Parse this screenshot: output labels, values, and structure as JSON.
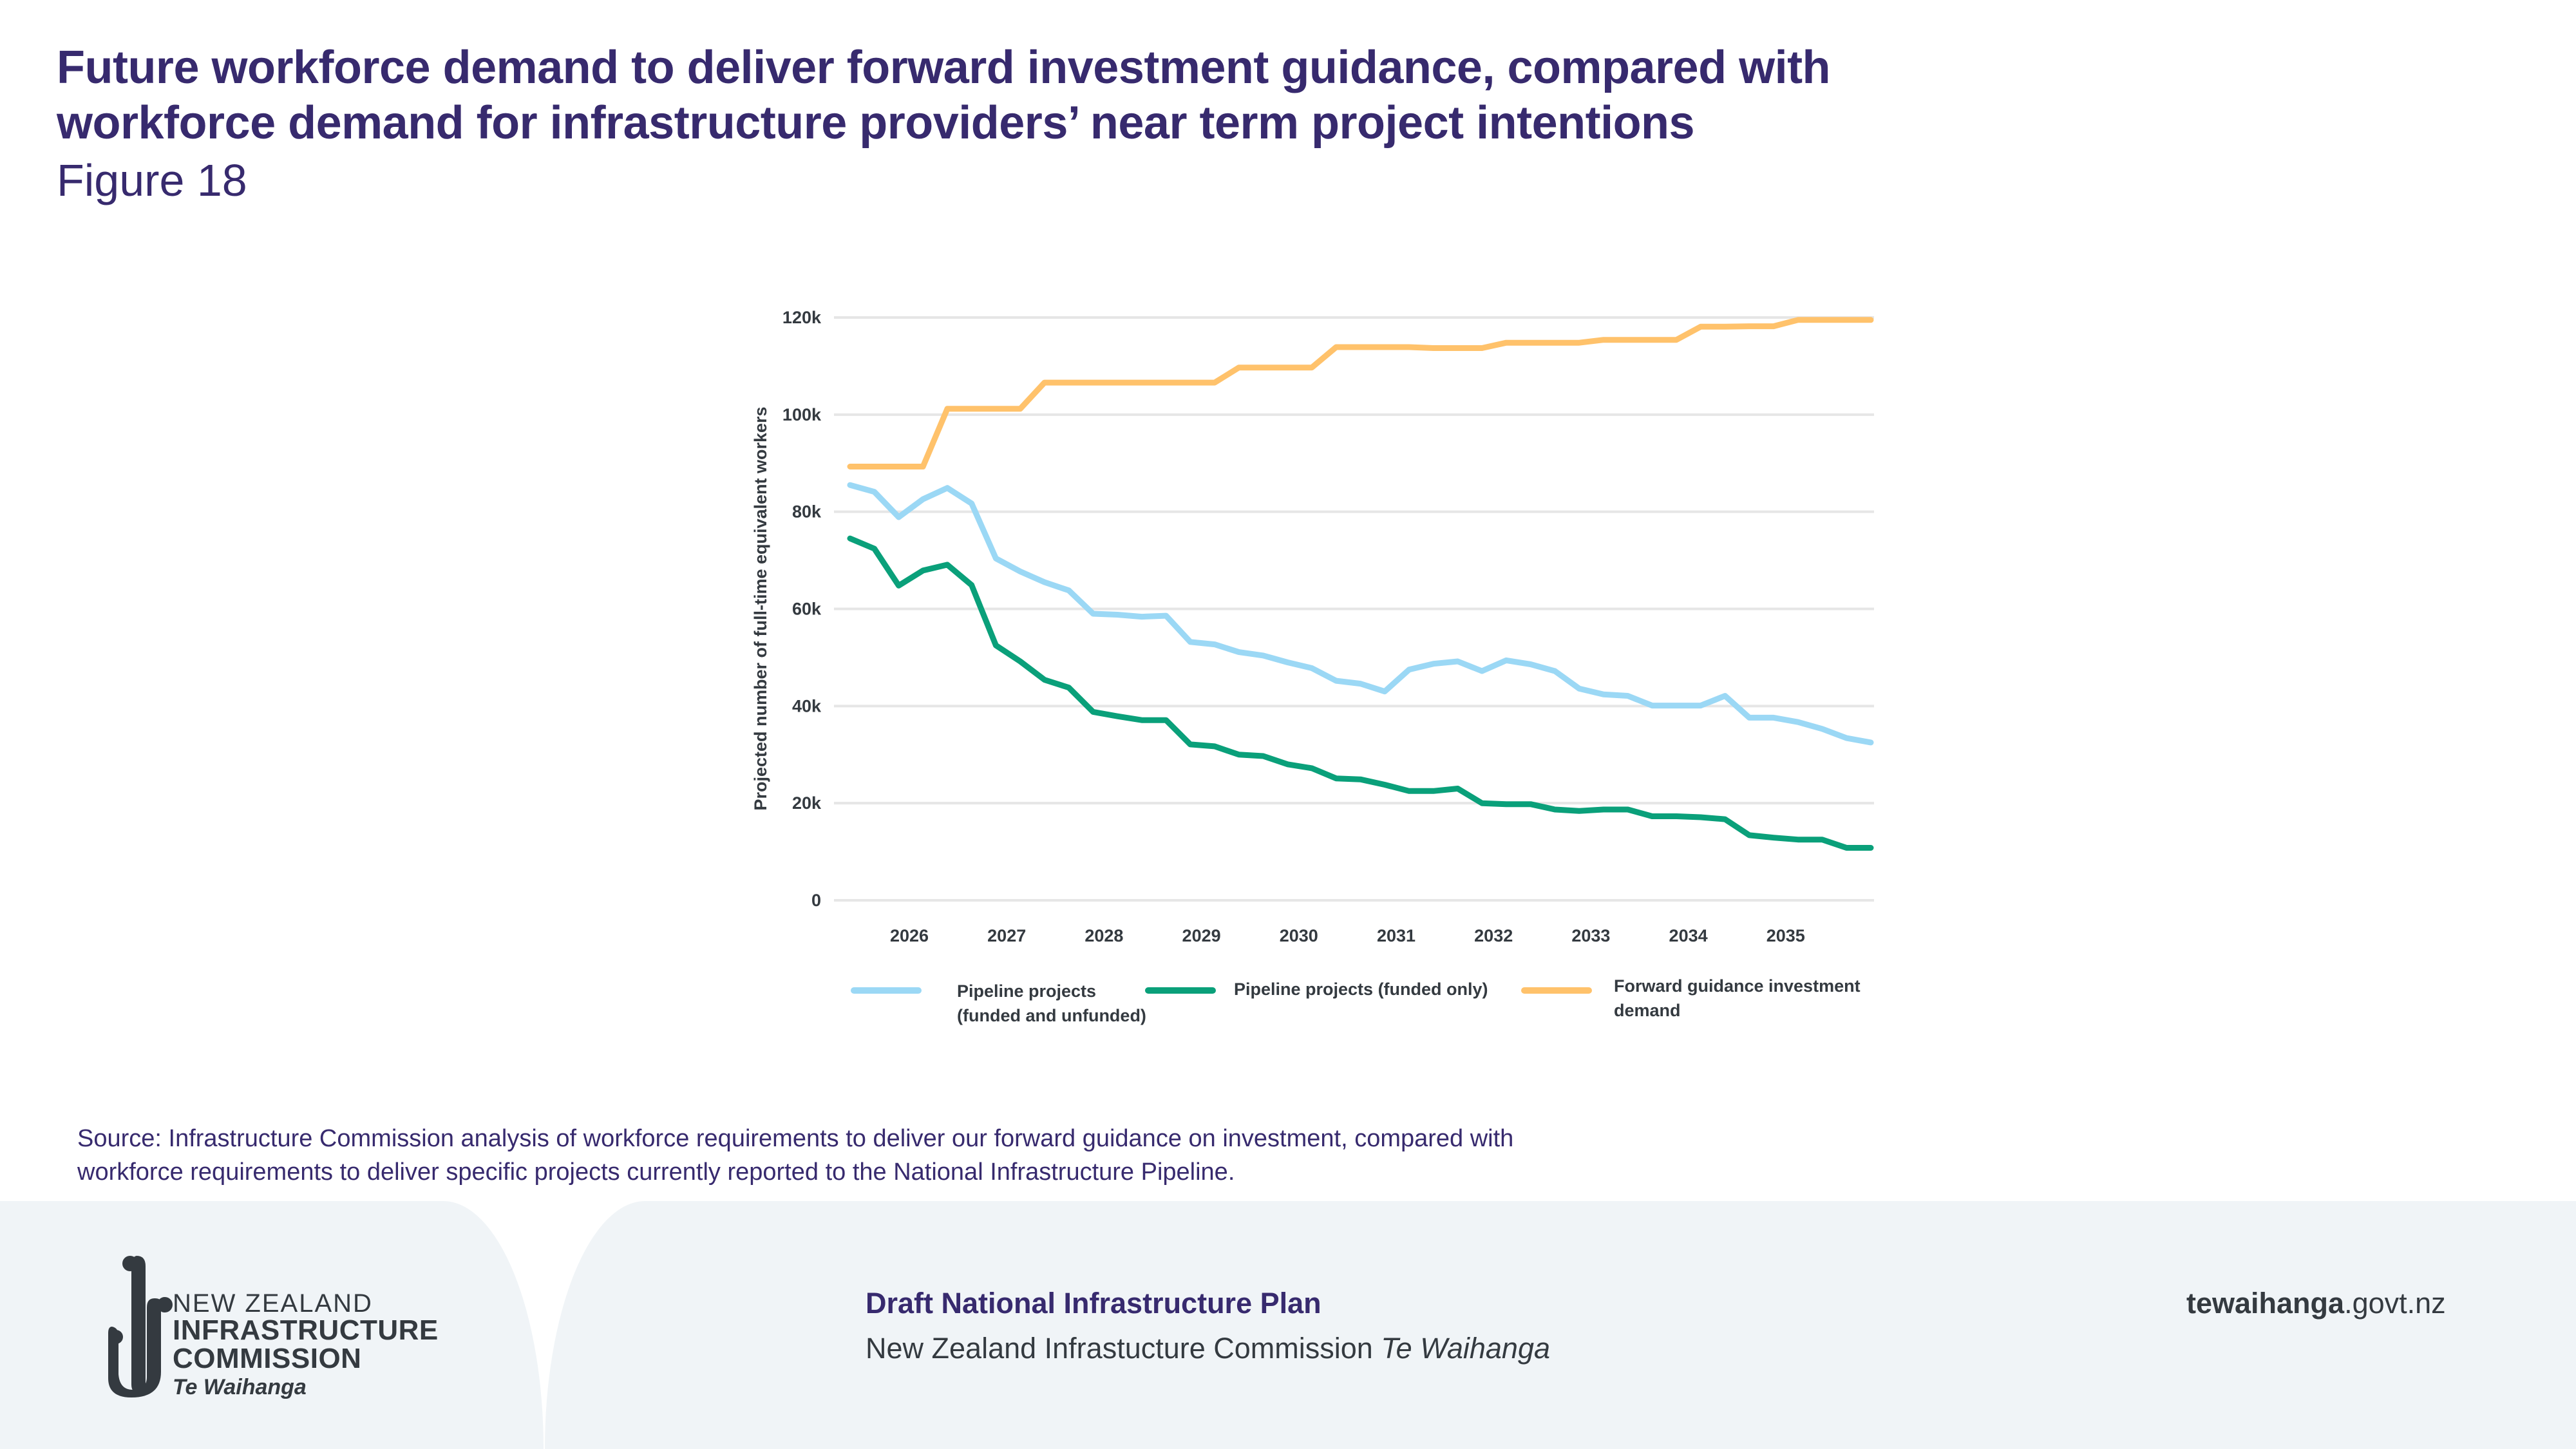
{
  "header": {
    "title_line1": "Future workforce demand to deliver forward investment guidance, compared with",
    "title_line2": "workforce demand for infrastructure providers’ near term project intentions",
    "figure_label": "Figure 18"
  },
  "chart_data": {
    "type": "line",
    "title": "Future workforce demand to deliver forward investment guidance, compared with workforce demand for infrastructure providers’ near term project intentions",
    "xlabel": "",
    "ylabel": "Projected number of full-time equivalent workers",
    "ylim": [
      0,
      120000
    ],
    "yticks": [
      0,
      20000,
      40000,
      60000,
      80000,
      100000,
      120000
    ],
    "ytick_labels": [
      "0",
      "20k",
      "40k",
      "60k",
      "80k",
      "100k",
      "120k"
    ],
    "xtick_labels": [
      "2026",
      "2027",
      "2028",
      "2029",
      "2030",
      "2031",
      "2032",
      "2033",
      "2034",
      "2035"
    ],
    "x_note": "Quarterly points, approximately 2025 Q3 to 2036 Q1",
    "grid": true,
    "legend_position": "bottom",
    "series": [
      {
        "name": "Pipeline projects (funded and unfunded)",
        "legend_lines": [
          "Pipeline projects",
          "(funded and unfunded)"
        ],
        "color": "#9bd8f5",
        "values": [
          85500,
          84100,
          78900,
          82600,
          84900,
          81700,
          70400,
          67700,
          65500,
          63800,
          59000,
          58800,
          58400,
          58600,
          53200,
          52700,
          51100,
          50400,
          49000,
          47800,
          45200,
          44600,
          43000,
          47500,
          48700,
          49200,
          47200,
          49400,
          48600,
          47200,
          43600,
          42400,
          42100,
          40100,
          40100,
          40100,
          42100,
          37600,
          37600,
          36700,
          35300,
          33400,
          32500
        ]
      },
      {
        "name": "Pipeline projects (funded only)",
        "legend_lines": [
          "Pipeline projects (funded only)"
        ],
        "color": "#0aa07a",
        "values": [
          74500,
          72400,
          64800,
          67900,
          69100,
          64900,
          52500,
          49200,
          45400,
          43800,
          38800,
          37900,
          37100,
          37100,
          32100,
          31700,
          30000,
          29700,
          28000,
          27200,
          25100,
          24900,
          23800,
          22500,
          22500,
          23000,
          20000,
          19800,
          19800,
          18700,
          18400,
          18700,
          18700,
          17300,
          17300,
          17100,
          16700,
          13400,
          12900,
          12500,
          12500,
          10800,
          10800
        ]
      },
      {
        "name": "Forward guidance investment demand",
        "legend_lines": [
          "Forward guidance investment",
          "demand"
        ],
        "color": "#ffc26b",
        "values": [
          89300,
          89300,
          89300,
          89300,
          101200,
          101200,
          101200,
          101200,
          106600,
          106600,
          106600,
          106600,
          106600,
          106600,
          106600,
          106600,
          109700,
          109700,
          109700,
          109700,
          113900,
          113900,
          113900,
          113900,
          113700,
          113700,
          113700,
          114800,
          114800,
          114800,
          114800,
          115400,
          115400,
          115400,
          115400,
          118100,
          118100,
          118200,
          118200,
          119500,
          119500,
          119500,
          119500
        ]
      }
    ]
  },
  "source": {
    "line1": "Source: Infrastructure Commission analysis of workforce requirements to deliver our forward guidance on investment, compared with",
    "line2": "workforce requirements to deliver specific projects currently reported to the National Infrastructure Pipeline."
  },
  "footer": {
    "logo": {
      "icon": "te-waihanga-logo-icon",
      "line1": "NEW ZEALAND",
      "line2": "INFRASTRUCTURE",
      "line3": "COMMISSION",
      "line4": "Te Waihanga"
    },
    "plan_title": "Draft National Infrastructure Plan",
    "plan_sub": "New Zealand Infrastucture Commission ",
    "plan_sub_italic": "Te Waihanga",
    "site_bold": "tewaihanga",
    "site_rest": ".govt.nz"
  },
  "colors": {
    "title": "#372a6e",
    "text_dark": "#343a40",
    "footer_bg": "#f0f4f7",
    "grid": "#e6e6e6"
  }
}
